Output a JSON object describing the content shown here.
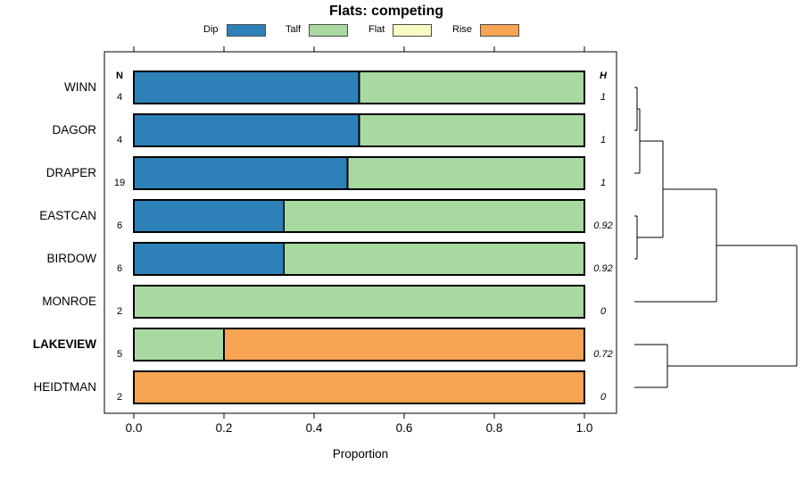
{
  "title": "Flats: competing",
  "legend": [
    {
      "label": "Dip",
      "color": "#2E80B9"
    },
    {
      "label": "Talf",
      "color": "#A8D9A0"
    },
    {
      "label": "Flat",
      "color": "#FAFAC3"
    },
    {
      "label": "Rise",
      "color": "#F7A453"
    }
  ],
  "columns": {
    "n_header": "N",
    "h_header": "H"
  },
  "axis": {
    "label": "Proportion",
    "ticks": [
      {
        "label": "0.0",
        "value": 0.0
      },
      {
        "label": "0.2",
        "value": 0.2
      },
      {
        "label": "0.4",
        "value": 0.4
      },
      {
        "label": "0.6",
        "value": 0.6
      },
      {
        "label": "0.8",
        "value": 0.8
      },
      {
        "label": "1.0",
        "value": 1.0
      }
    ]
  },
  "chart_data": {
    "type": "bar",
    "orientation": "horizontal",
    "stacked": true,
    "title": "Flats: competing",
    "xlabel": "Proportion",
    "xlim": [
      0,
      1
    ],
    "grid": false,
    "legend_position": "top",
    "categories": [
      "WINN",
      "DAGOR",
      "DRAPER",
      "EASTCAN",
      "BIRDOW",
      "MONROE",
      "LAKEVIEW",
      "HEIDTMAN"
    ],
    "bold_category": "LAKEVIEW",
    "n_values": [
      4,
      4,
      19,
      6,
      6,
      2,
      5,
      2
    ],
    "h_values": [
      "1",
      "1",
      "1",
      "0.92",
      "0.92",
      "0",
      "0.72",
      "0"
    ],
    "series": [
      {
        "name": "Dip",
        "color": "#2E80B9",
        "values": [
          0.5,
          0.5,
          0.474,
          0.333,
          0.333,
          0,
          0,
          0
        ]
      },
      {
        "name": "Talf",
        "color": "#A8D9A0",
        "values": [
          0.5,
          0.5,
          0.526,
          0.667,
          0.667,
          1.0,
          0.2,
          0
        ]
      },
      {
        "name": "Flat",
        "color": "#FAFAC3",
        "values": [
          0,
          0,
          0,
          0,
          0,
          0,
          0,
          0
        ]
      },
      {
        "name": "Rise",
        "color": "#F7A453",
        "values": [
          0,
          0,
          0,
          0,
          0,
          0,
          0.8,
          1.0
        ]
      }
    ],
    "dendrogram": {
      "merges": [
        {
          "id": "m1",
          "a": "WINN",
          "b": "DAGOR",
          "height": 0.016
        },
        {
          "id": "m2",
          "a": "m1",
          "b": "DRAPER",
          "height": 0.033
        },
        {
          "id": "m3",
          "a": "EASTCAN",
          "b": "BIRDOW",
          "height": 0.016
        },
        {
          "id": "m4",
          "a": "m2",
          "b": "m3",
          "height": 0.176
        },
        {
          "id": "m5",
          "a": "m4",
          "b": "MONROE",
          "height": 0.505
        },
        {
          "id": "m6",
          "a": "LAKEVIEW",
          "b": "HEIDTMAN",
          "height": 0.203
        },
        {
          "id": "m7",
          "a": "m5",
          "b": "m6",
          "height": 1.0
        }
      ]
    }
  }
}
